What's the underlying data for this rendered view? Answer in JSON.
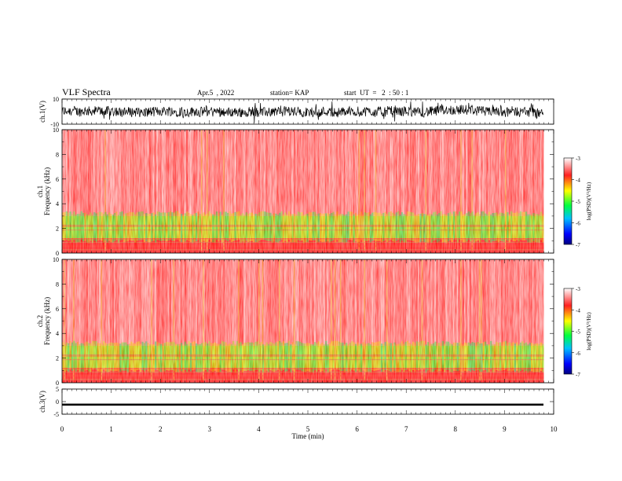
{
  "header": {
    "title": "VLF Spectra",
    "date": "Apr.5  , 2022",
    "station": "station= KAP",
    "start": "start  UT  =   2  : 50 : 1"
  },
  "colors": {
    "spectrogram_background": "#ff3030",
    "low_band": "#40e040",
    "mid_band": "#f0d040",
    "trace": "#000000"
  },
  "chart_data": [
    {
      "type": "line",
      "panel": "ch1-waveform",
      "ylabel": "ch.1(V)",
      "ylim": [
        -10,
        10
      ],
      "yticks": [
        "10",
        "-10"
      ],
      "xlim": [
        0,
        10
      ],
      "description_values": {
        "mean_V": 0,
        "amplitude_range_V": [
          -9,
          8
        ]
      }
    },
    {
      "type": "heatmap",
      "panel": "ch1-spectrogram",
      "ylabel": "ch.1\nFrequency (kHz)",
      "ylabel_lines": [
        "ch.1",
        "Frequency  (kHz)"
      ],
      "ylim": [
        0,
        10
      ],
      "yticks": [
        "0",
        "2",
        "4",
        "6",
        "8",
        "10"
      ],
      "xlim": [
        0,
        9.8
      ],
      "bands": [
        {
          "from_kHz": 3.0,
          "to_kHz": 10.0,
          "log_psd": -3.4
        },
        {
          "from_kHz": 1.2,
          "to_kHz": 3.0,
          "log_psd": -4.8
        },
        {
          "from_kHz": 0.0,
          "to_kHz": 1.2,
          "log_psd": -3.8
        }
      ],
      "colorbar": {
        "label": "log(PSD)(V²/Hz)",
        "ticks": [
          "-3",
          "-4",
          "-5",
          "-6",
          "-7"
        ],
        "range": [
          -7,
          -3
        ]
      }
    },
    {
      "type": "heatmap",
      "panel": "ch2-spectrogram",
      "ylabel_lines": [
        "ch.2",
        "Frequency  (kHz)"
      ],
      "ylim": [
        0,
        10
      ],
      "yticks": [
        "0",
        "2",
        "4",
        "6",
        "8",
        "10"
      ],
      "xlim": [
        0,
        9.8
      ],
      "bands": [
        {
          "from_kHz": 3.0,
          "to_kHz": 10.0,
          "log_psd": -3.4
        },
        {
          "from_kHz": 1.2,
          "to_kHz": 3.0,
          "log_psd": -4.8
        },
        {
          "from_kHz": 0.0,
          "to_kHz": 1.2,
          "log_psd": -3.8
        }
      ],
      "colorbar": {
        "label": "log(PSD)(V²/Hz)",
        "ticks": [
          "-3",
          "-4",
          "-5",
          "-6",
          "-7"
        ],
        "range": [
          -7,
          -3
        ]
      }
    },
    {
      "type": "line",
      "panel": "ch3-waveform",
      "ylabel": "ch.3(V)",
      "ylim": [
        -5,
        5
      ],
      "yticks": [
        "5",
        "0",
        "-5"
      ],
      "xlim": [
        0,
        10
      ],
      "description_values": {
        "mean_V": -1.2,
        "amplitude_range_V": [
          -1.6,
          -0.8
        ]
      }
    }
  ],
  "xaxis": {
    "label": "Time  (min)",
    "ticks": [
      "0",
      "1",
      "2",
      "3",
      "4",
      "5",
      "6",
      "7",
      "8",
      "9",
      "10"
    ],
    "range": [
      0,
      10
    ]
  }
}
